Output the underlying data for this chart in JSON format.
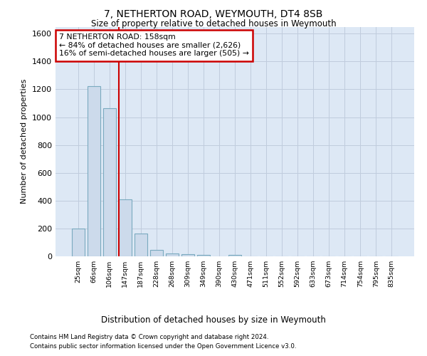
{
  "title": "7, NETHERTON ROAD, WEYMOUTH, DT4 8SB",
  "subtitle": "Size of property relative to detached houses in Weymouth",
  "xlabel": "Distribution of detached houses by size in Weymouth",
  "ylabel": "Number of detached properties",
  "footnote1": "Contains HM Land Registry data © Crown copyright and database right 2024.",
  "footnote2": "Contains public sector information licensed under the Open Government Licence v3.0.",
  "bin_labels": [
    "25sqm",
    "66sqm",
    "106sqm",
    "147sqm",
    "187sqm",
    "228sqm",
    "268sqm",
    "309sqm",
    "349sqm",
    "390sqm",
    "430sqm",
    "471sqm",
    "511sqm",
    "552sqm",
    "592sqm",
    "633sqm",
    "673sqm",
    "714sqm",
    "754sqm",
    "795sqm",
    "835sqm"
  ],
  "bar_heights": [
    200,
    1225,
    1065,
    410,
    165,
    45,
    20,
    15,
    10,
    0,
    10,
    0,
    0,
    0,
    0,
    0,
    0,
    0,
    0,
    0,
    0
  ],
  "bar_color": "#ccdaeb",
  "bar_edge_color": "#7aaabf",
  "annotation_text_line1": "7 NETHERTON ROAD: 158sqm",
  "annotation_text_line2": "← 84% of detached houses are smaller (2,626)",
  "annotation_text_line3": "16% of semi-detached houses are larger (505) →",
  "annotation_box_color": "#ffffff",
  "annotation_border_color": "#cc0000",
  "red_line_color": "#cc0000",
  "grid_color": "#c0ccdd",
  "background_color": "#dde8f5",
  "ylim": [
    0,
    1650
  ],
  "yticks": [
    0,
    200,
    400,
    600,
    800,
    1000,
    1200,
    1400,
    1600
  ],
  "red_line_bin": 3
}
